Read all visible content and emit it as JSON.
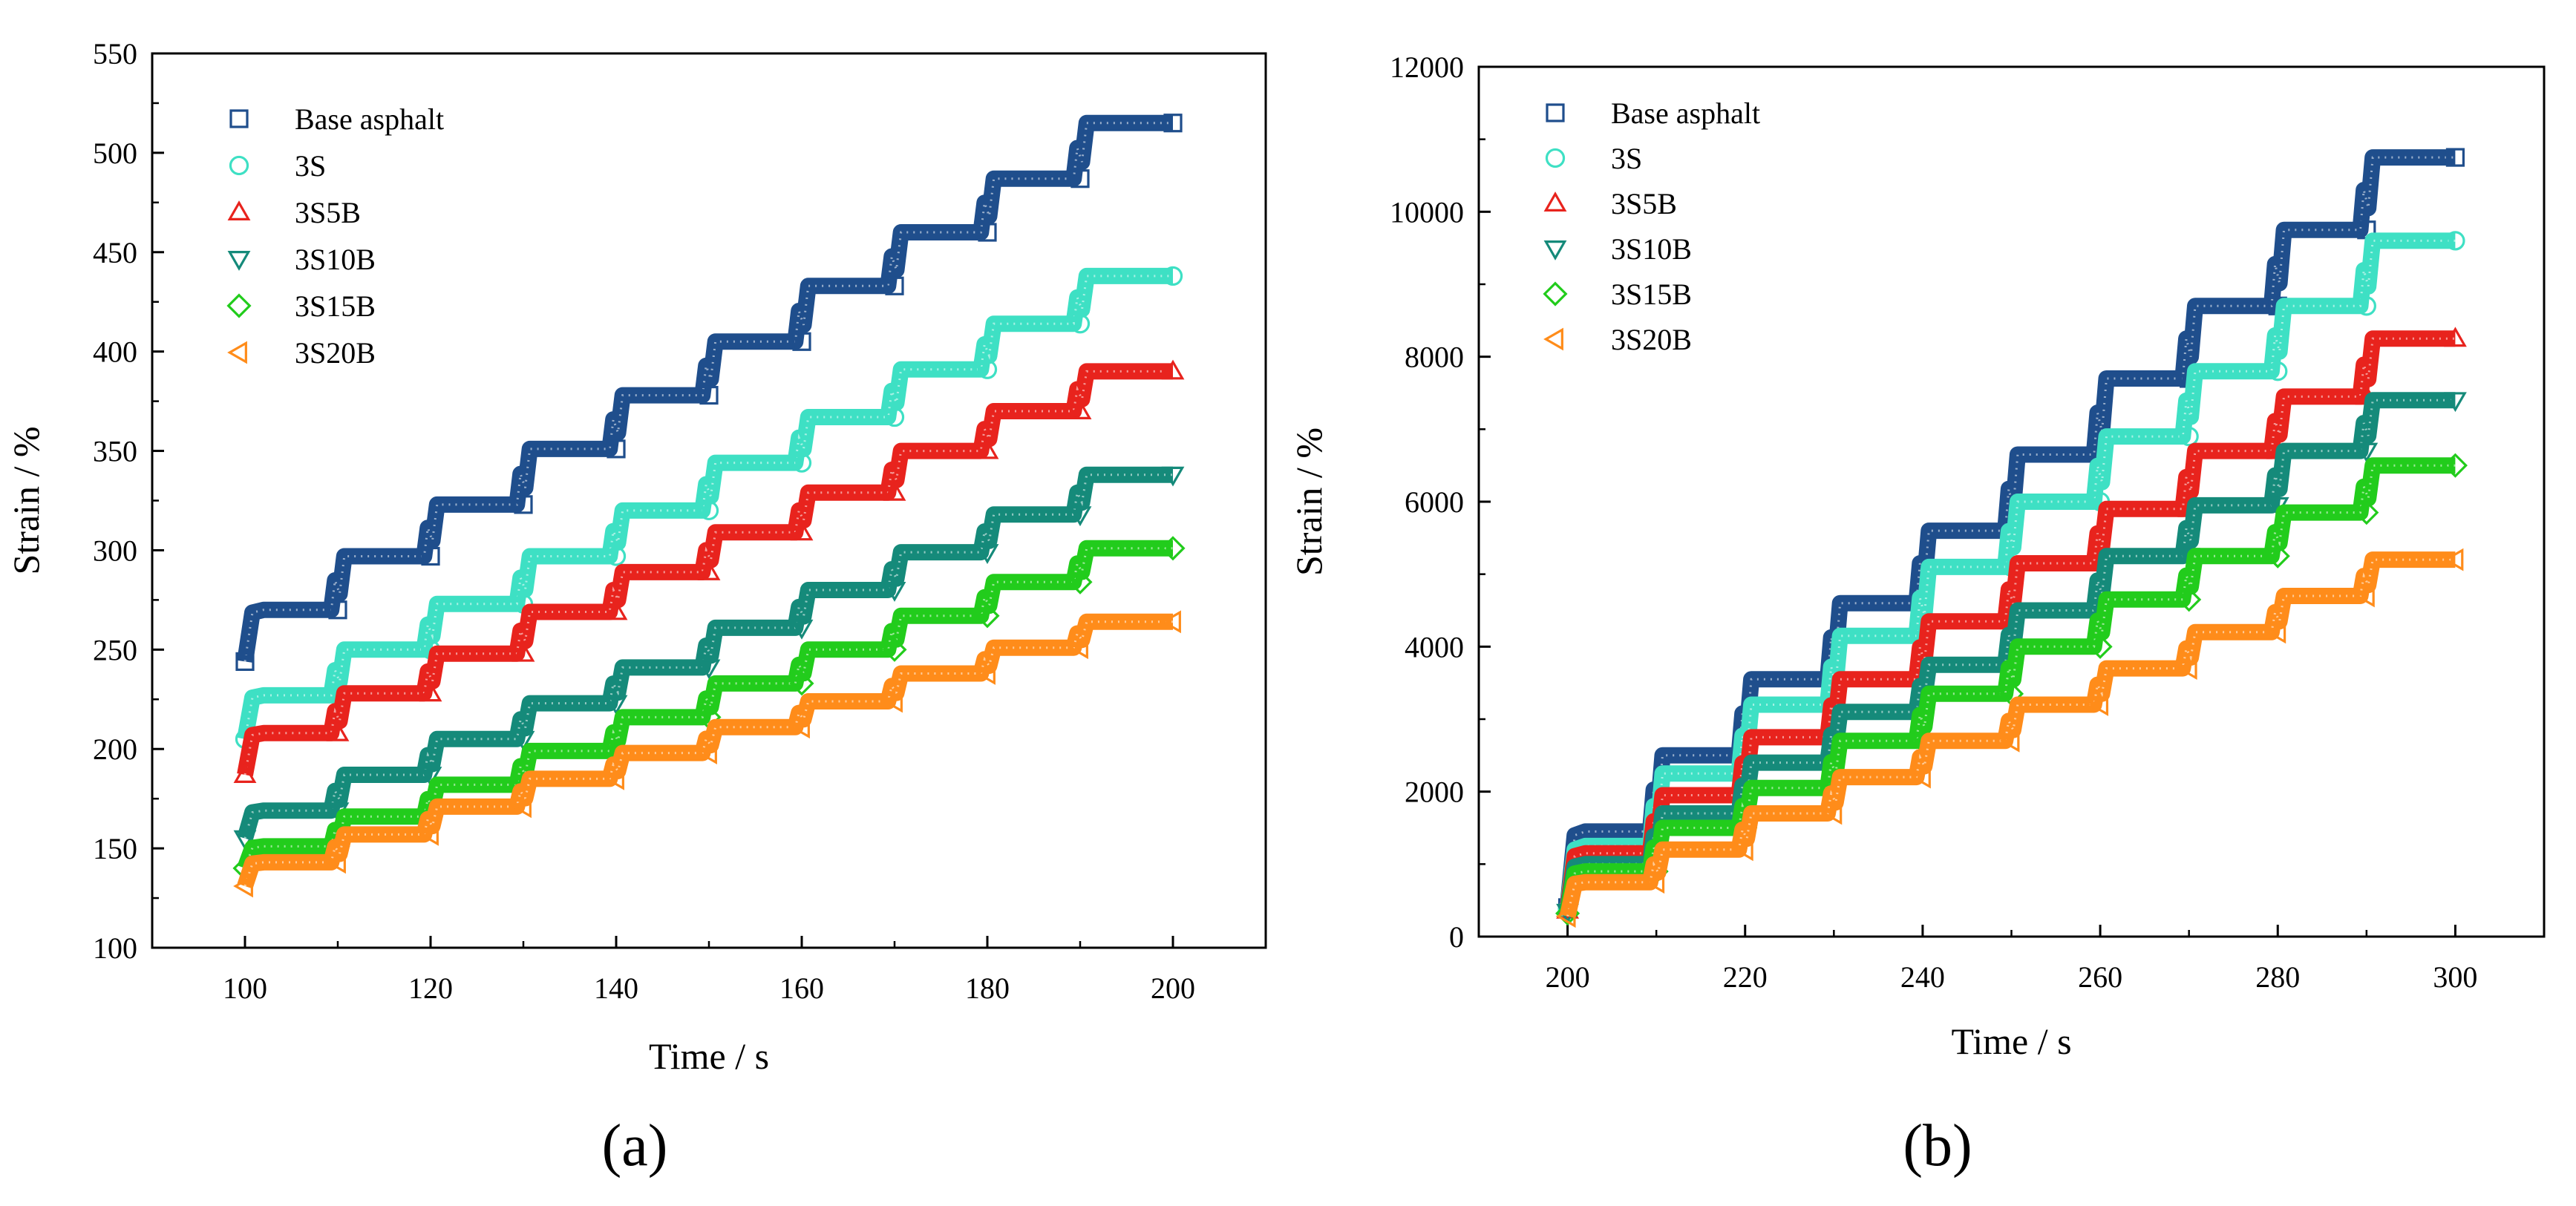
{
  "chart_data": [
    {
      "type": "scatter",
      "panel_label": "(a)",
      "xlabel": "Time / s",
      "ylabel": "Strain / %",
      "xlim": [
        90,
        210
      ],
      "ylim": [
        100,
        550
      ],
      "x_ticks": [
        100,
        120,
        140,
        160,
        180,
        200
      ],
      "y_ticks": [
        100,
        150,
        200,
        250,
        300,
        350,
        400,
        450,
        500,
        550
      ],
      "grid": false,
      "legend_position": "top-left",
      "x_start": 100,
      "cycle_seconds": 10,
      "cycles": 10,
      "series": [
        {
          "name": "Base asphalt",
          "marker": "square",
          "color": "#1f4e8c",
          "values": [
            244,
            270,
            297,
            323,
            351,
            378,
            405,
            433,
            460,
            487,
            515
          ]
        },
        {
          "name": "3S",
          "marker": "circle",
          "color": "#3ee0c4",
          "values": [
            205,
            227,
            250,
            273,
            297,
            320,
            344,
            367,
            391,
            414,
            438
          ]
        },
        {
          "name": "3S5B",
          "marker": "triangle-up",
          "color": "#e8231d",
          "values": [
            187,
            208,
            228,
            248,
            269,
            289,
            309,
            329,
            350,
            370,
            390
          ]
        },
        {
          "name": "3S10B",
          "marker": "triangle-down",
          "color": "#158a7a",
          "values": [
            155,
            169,
            187,
            205,
            223,
            241,
            261,
            280,
            299,
            318,
            338
          ]
        },
        {
          "name": "3S15B",
          "marker": "diamond",
          "color": "#22cc1c",
          "values": [
            140,
            151,
            166,
            182,
            199,
            216,
            233,
            250,
            267,
            284,
            301
          ]
        },
        {
          "name": "3S20B",
          "marker": "triangle-left",
          "color": "#ff8c1a",
          "values": [
            131,
            143,
            157,
            171,
            185,
            198,
            211,
            224,
            238,
            251,
            264
          ]
        }
      ]
    },
    {
      "type": "scatter",
      "panel_label": "(b)",
      "xlabel": "Time / s",
      "ylabel": "Strain / %",
      "xlim": [
        190,
        310
      ],
      "ylim": [
        0,
        12000
      ],
      "x_ticks": [
        200,
        220,
        240,
        260,
        280,
        300
      ],
      "y_ticks": [
        0,
        2000,
        4000,
        6000,
        8000,
        10000,
        12000
      ],
      "grid": false,
      "legend_position": "top-left",
      "x_start": 200,
      "cycle_seconds": 10,
      "cycles": 10,
      "series": [
        {
          "name": "Base asphalt",
          "marker": "square",
          "color": "#1f4e8c",
          "values": [
            400,
            1450,
            2500,
            3550,
            4600,
            5600,
            6650,
            7700,
            8700,
            9750,
            10750
          ]
        },
        {
          "name": "3S",
          "marker": "circle",
          "color": "#3ee0c4",
          "values": [
            380,
            1250,
            2250,
            3200,
            4150,
            5100,
            6000,
            6900,
            7800,
            8700,
            9600
          ]
        },
        {
          "name": "3S5B",
          "marker": "triangle-up",
          "color": "#e8231d",
          "values": [
            360,
            1150,
            1950,
            2750,
            3550,
            4350,
            5150,
            5900,
            6700,
            7450,
            8250
          ]
        },
        {
          "name": "3S10B",
          "marker": "triangle-down",
          "color": "#158a7a",
          "values": [
            340,
            1000,
            1700,
            2400,
            3100,
            3750,
            4500,
            5250,
            5950,
            6700,
            7400
          ]
        },
        {
          "name": "3S15B",
          "marker": "diamond",
          "color": "#22cc1c",
          "values": [
            320,
            900,
            1500,
            2050,
            2700,
            3350,
            4000,
            4650,
            5250,
            5850,
            6500
          ]
        },
        {
          "name": "3S20B",
          "marker": "triangle-left",
          "color": "#ff8c1a",
          "values": [
            280,
            750,
            1200,
            1700,
            2200,
            2700,
            3200,
            3700,
            4200,
            4700,
            5200
          ]
        }
      ]
    }
  ]
}
